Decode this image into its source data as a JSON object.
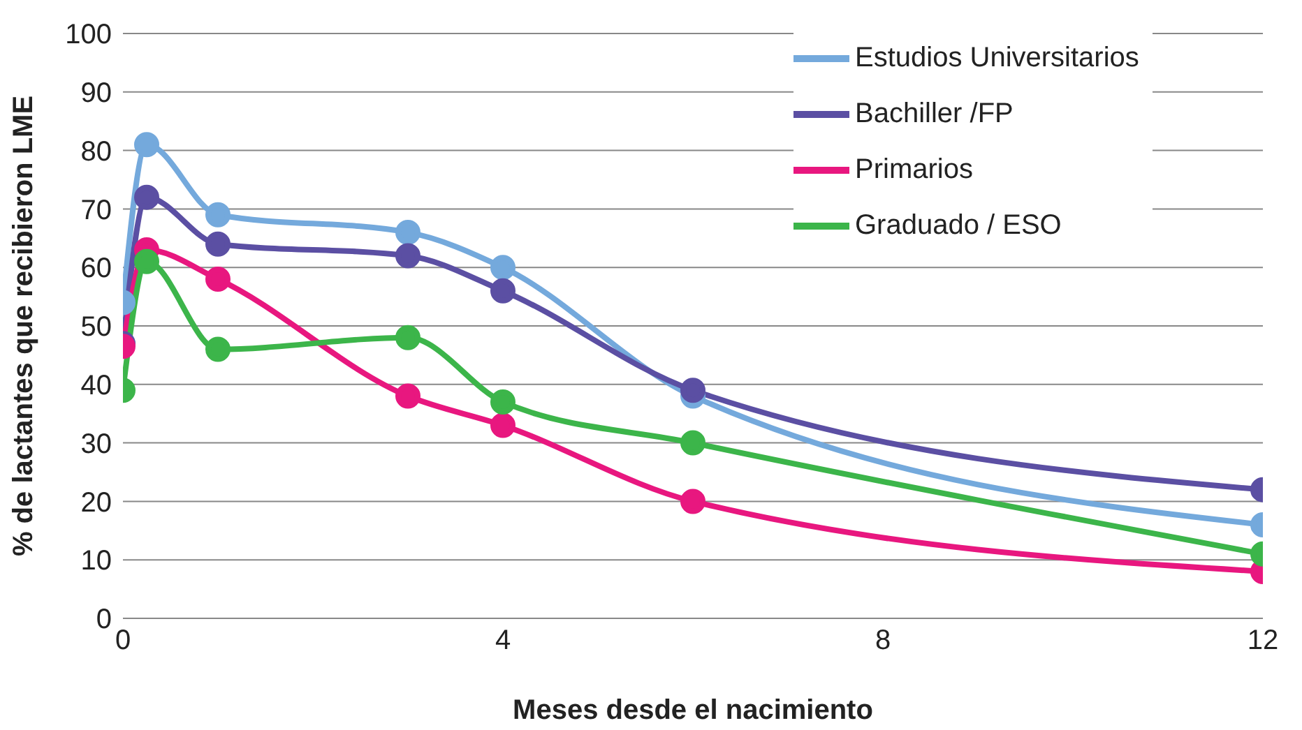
{
  "chart_data": {
    "type": "line",
    "xlabel": "Meses desde el nacimiento",
    "ylabel": "% de lactantes que recibieron LME",
    "x": [
      0,
      0.25,
      1,
      3,
      4,
      6,
      12
    ],
    "xlim": [
      0,
      12
    ],
    "xticks": [
      0,
      4,
      8,
      12
    ],
    "ylim": [
      0,
      100
    ],
    "yticks": [
      0,
      10,
      20,
      30,
      40,
      50,
      60,
      70,
      80,
      90,
      100
    ],
    "grid": "y",
    "legend": "top right",
    "marker": "circle",
    "series": [
      {
        "name": "Estudios Universitarios",
        "color": "#74a9dc",
        "values": [
          54,
          81,
          69,
          66,
          60,
          38,
          16
        ]
      },
      {
        "name": "Bachiller /FP",
        "color": "#5b4fa3",
        "values": [
          47,
          72,
          64,
          62,
          56,
          39,
          22
        ]
      },
      {
        "name": "Primarios",
        "color": "#e8177f",
        "values": [
          46.5,
          63,
          58,
          38,
          33,
          20,
          8
        ]
      },
      {
        "name": "Graduado / ESO",
        "color": "#3cb54a",
        "values": [
          39,
          61,
          46,
          48,
          37,
          30,
          11
        ]
      }
    ]
  }
}
